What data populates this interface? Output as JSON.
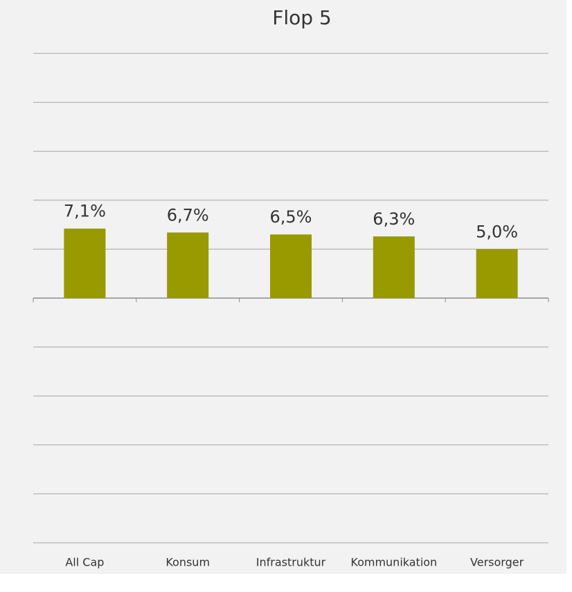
{
  "chart_data": {
    "type": "bar",
    "title": "Flop 5",
    "categories": [
      "All Cap",
      "Konsum",
      "Infrastruktur",
      "Kommunikation",
      "Versorger"
    ],
    "values": [
      7.1,
      6.7,
      6.5,
      6.3,
      5.0
    ],
    "value_labels": [
      "7,1%",
      "6,7%",
      "6,5%",
      "6,3%",
      "5,0%"
    ],
    "color": "#999900",
    "ylim": [
      -25,
      25
    ],
    "yticks": [
      -25,
      -20,
      -15,
      -10,
      -5,
      0,
      5,
      10,
      15,
      20,
      25
    ],
    "grid": true
  }
}
